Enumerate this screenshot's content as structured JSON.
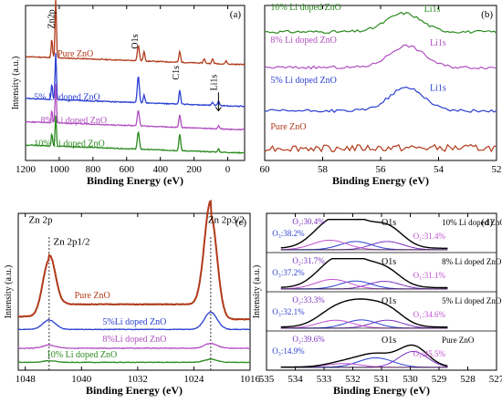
{
  "figure": {
    "chart_data": [
      {
        "id": "a",
        "panel_label": "(a)",
        "type": "line",
        "xlabel": "Binding Energy (eV)",
        "ylabel": "Intensity (a.u.)",
        "xlim": [
          1200,
          -100
        ],
        "ylim": [
          0,
          1
        ],
        "xticks": [
          1200,
          1000,
          800,
          600,
          400,
          200,
          0
        ],
        "annotations": [
          {
            "text": "Zn2p",
            "x": 1030,
            "y": 0.85,
            "rotate": true
          },
          {
            "text": "O1s",
            "x": 535,
            "y": 0.72,
            "rotate": true
          },
          {
            "text": "C1s",
            "x": 290,
            "y": 0.52,
            "rotate": true
          },
          {
            "text": "Li1s",
            "x": 65,
            "y": 0.45,
            "rotate": true
          }
        ],
        "series": [
          {
            "name": "Pure ZnO",
            "color": "#b03a1a",
            "base": 0.62,
            "peaks": [
              [
                1044,
                0.12,
                4
              ],
              [
                1021,
                0.38,
                4
              ],
              [
                531,
                0.1,
                6
              ],
              [
                497,
                0.06,
                5
              ],
              [
                285,
                0.07,
                5
              ],
              [
                140,
                0.03,
                5
              ],
              [
                90,
                0.03,
                5
              ],
              [
                10,
                0.02,
                5
              ]
            ],
            "label_x": 1010,
            "label_y": 0.67
          },
          {
            "name": "5% Li doped ZnO",
            "color": "#2a3fd0",
            "base": 0.35,
            "peaks": [
              [
                1044,
                0.1,
                4
              ],
              [
                1021,
                0.3,
                4
              ],
              [
                531,
                0.17,
                6
              ],
              [
                497,
                0.05,
                5
              ],
              [
                285,
                0.09,
                5
              ],
              [
                90,
                0.02,
                5
              ],
              [
                55,
                0.03,
                5
              ]
            ],
            "label_x": 1150,
            "label_y": 0.39
          },
          {
            "name": "8% Li doped ZnO",
            "color": "#b04fc0",
            "base": 0.2,
            "peaks": [
              [
                1044,
                0.08,
                4
              ],
              [
                1021,
                0.25,
                4
              ],
              [
                531,
                0.1,
                6
              ],
              [
                285,
                0.08,
                5
              ],
              [
                55,
                0.02,
                5
              ]
            ],
            "label_x": 1110,
            "label_y": 0.24
          },
          {
            "name": "10% Li doped ZnO",
            "color": "#2a8a1e",
            "base": 0.05,
            "peaks": [
              [
                1044,
                0.08,
                4
              ],
              [
                1021,
                0.2,
                4
              ],
              [
                531,
                0.11,
                6
              ],
              [
                285,
                0.11,
                5
              ],
              [
                55,
                0.02,
                5
              ]
            ],
            "label_x": 1150,
            "label_y": 0.09
          }
        ]
      },
      {
        "id": "b",
        "panel_label": "(b)",
        "type": "line",
        "xlabel": "Binding Energy (eV)",
        "ylabel": "",
        "xlim": [
          60,
          52
        ],
        "ylim": [
          0,
          1
        ],
        "xticks": [
          60,
          58,
          56,
          54,
          52
        ],
        "series": [
          {
            "name": "10% Li doped ZnO",
            "color": "#2a8a1e",
            "base": 0.83,
            "peak_x": 55.2,
            "peak_h": 0.12,
            "peak_w": 0.6,
            "label_x": 59.8,
            "label_y": 0.97,
            "li_label": "Li1s",
            "li_x": 54.5,
            "li_y": 0.96
          },
          {
            "name": "8% Li doped ZnO",
            "color": "#b04fc0",
            "base": 0.6,
            "peak_x": 55.1,
            "peak_h": 0.14,
            "peak_w": 0.6,
            "label_x": 59.8,
            "label_y": 0.76,
            "li_label": "Li1s",
            "li_x": 54.3,
            "li_y": 0.74
          },
          {
            "name": "5% Li doped ZnO",
            "color": "#2a3fd0",
            "base": 0.32,
            "peak_x": 55.1,
            "peak_h": 0.15,
            "peak_w": 0.6,
            "label_x": 59.8,
            "label_y": 0.5,
            "li_label": "Li1s",
            "li_x": 54.3,
            "li_y": 0.45
          },
          {
            "name": "Pure ZnO",
            "color": "#b03a1a",
            "base": 0.08,
            "peak_x": 55.0,
            "peak_h": 0.0,
            "peak_w": 0.6,
            "label_x": 59.8,
            "label_y": 0.2
          }
        ]
      },
      {
        "id": "c",
        "panel_label": "(c)",
        "type": "line",
        "xlabel": "Binding Energy (eV)",
        "ylabel": "Intensity (a.u.)",
        "xlim": [
          1049,
          1016
        ],
        "ylim": [
          0,
          1
        ],
        "xticks": [
          1048,
          1040,
          1032,
          1024,
          1016
        ],
        "annotations": [
          {
            "text": "Zn 2p",
            "x": 1047.5,
            "y": 0.94
          },
          {
            "text": "Zn 2p1/2",
            "x": 1044,
            "y": 0.8
          },
          {
            "text": "Zn 2p3/2",
            "x": 1022,
            "y": 0.94
          }
        ],
        "dashed_lines": [
          1044.6,
          1021.6
        ],
        "series": [
          {
            "name": "Pure ZnO",
            "color": "#b03a1a",
            "base": 0.3,
            "p1": 0.36,
            "p2": 0.66,
            "bg": 0.12,
            "label_x": 1041,
            "label_y": 0.46
          },
          {
            "name": "5%Li doped ZnO",
            "color": "#2a3fd0",
            "base": 0.26,
            "p1": 0.06,
            "p2": 0.11,
            "bg": 0.0,
            "label_x": 1037,
            "label_y": 0.29
          },
          {
            "name": "8%Li doped ZnO",
            "color": "#b04fc0",
            "base": 0.14,
            "p1": 0.02,
            "p2": 0.03,
            "bg": 0.0,
            "label_x": 1037,
            "label_y": 0.18
          },
          {
            "name": "10% Li doped ZnO",
            "color": "#2a8a1e",
            "base": 0.05,
            "p1": 0.01,
            "p2": 0.02,
            "bg": 0.0,
            "label_x": 1045,
            "label_y": 0.08
          }
        ]
      },
      {
        "id": "d",
        "panel_label": "(d)",
        "type": "line",
        "xlabel": "Binding Energy (eV)",
        "ylabel": "Intensity (a.u.)",
        "xlim": [
          535,
          527
        ],
        "ylim": [
          0,
          4
        ],
        "xticks": [
          535,
          534,
          533,
          532,
          531,
          530,
          529,
          528,
          527
        ],
        "rows": [
          {
            "name": "10% Li doped ZnO",
            "o1s": "O1s",
            "o1": "O₁:31.4%",
            "o2": "O₂:30.4%",
            "o3": "O₃:38.2%",
            "peaks": [
              [
                530.8,
                0.26,
                0.55
              ],
              [
                531.9,
                0.26,
                0.55
              ],
              [
                532.8,
                0.3,
                0.6
              ]
            ],
            "sum_h": 0.85
          },
          {
            "name": "8% Li doped ZnO",
            "o1s": "O1s",
            "o1": "O₁:31.1%",
            "o2": "O₂:31.7%",
            "o3": "O₃:37.2%",
            "peaks": [
              [
                530.9,
                0.24,
                0.55
              ],
              [
                531.9,
                0.25,
                0.55
              ],
              [
                532.7,
                0.3,
                0.6
              ]
            ],
            "sum_h": 0.8
          },
          {
            "name": "5% Li doped ZnO",
            "o1s": "O1s",
            "o1": "O₁:34.6%",
            "o2": "O₂:33.3%",
            "o3": "O₃:32.1%",
            "peaks": [
              [
                530.8,
                0.25,
                0.55
              ],
              [
                531.7,
                0.26,
                0.55
              ],
              [
                532.6,
                0.25,
                0.6
              ]
            ],
            "sum_h": 0.72
          },
          {
            "name": "Pure ZnO",
            "o1s": "O1s",
            "o1": "O₁:45.5%",
            "o2": "O₂:39.6%",
            "o3": "O₃:14.9%",
            "peaks": [
              [
                529.9,
                0.5,
                0.5
              ],
              [
                531.2,
                0.3,
                0.6
              ],
              [
                532.3,
                0.12,
                0.6
              ]
            ],
            "sum_h": 0.72
          }
        ]
      }
    ]
  }
}
